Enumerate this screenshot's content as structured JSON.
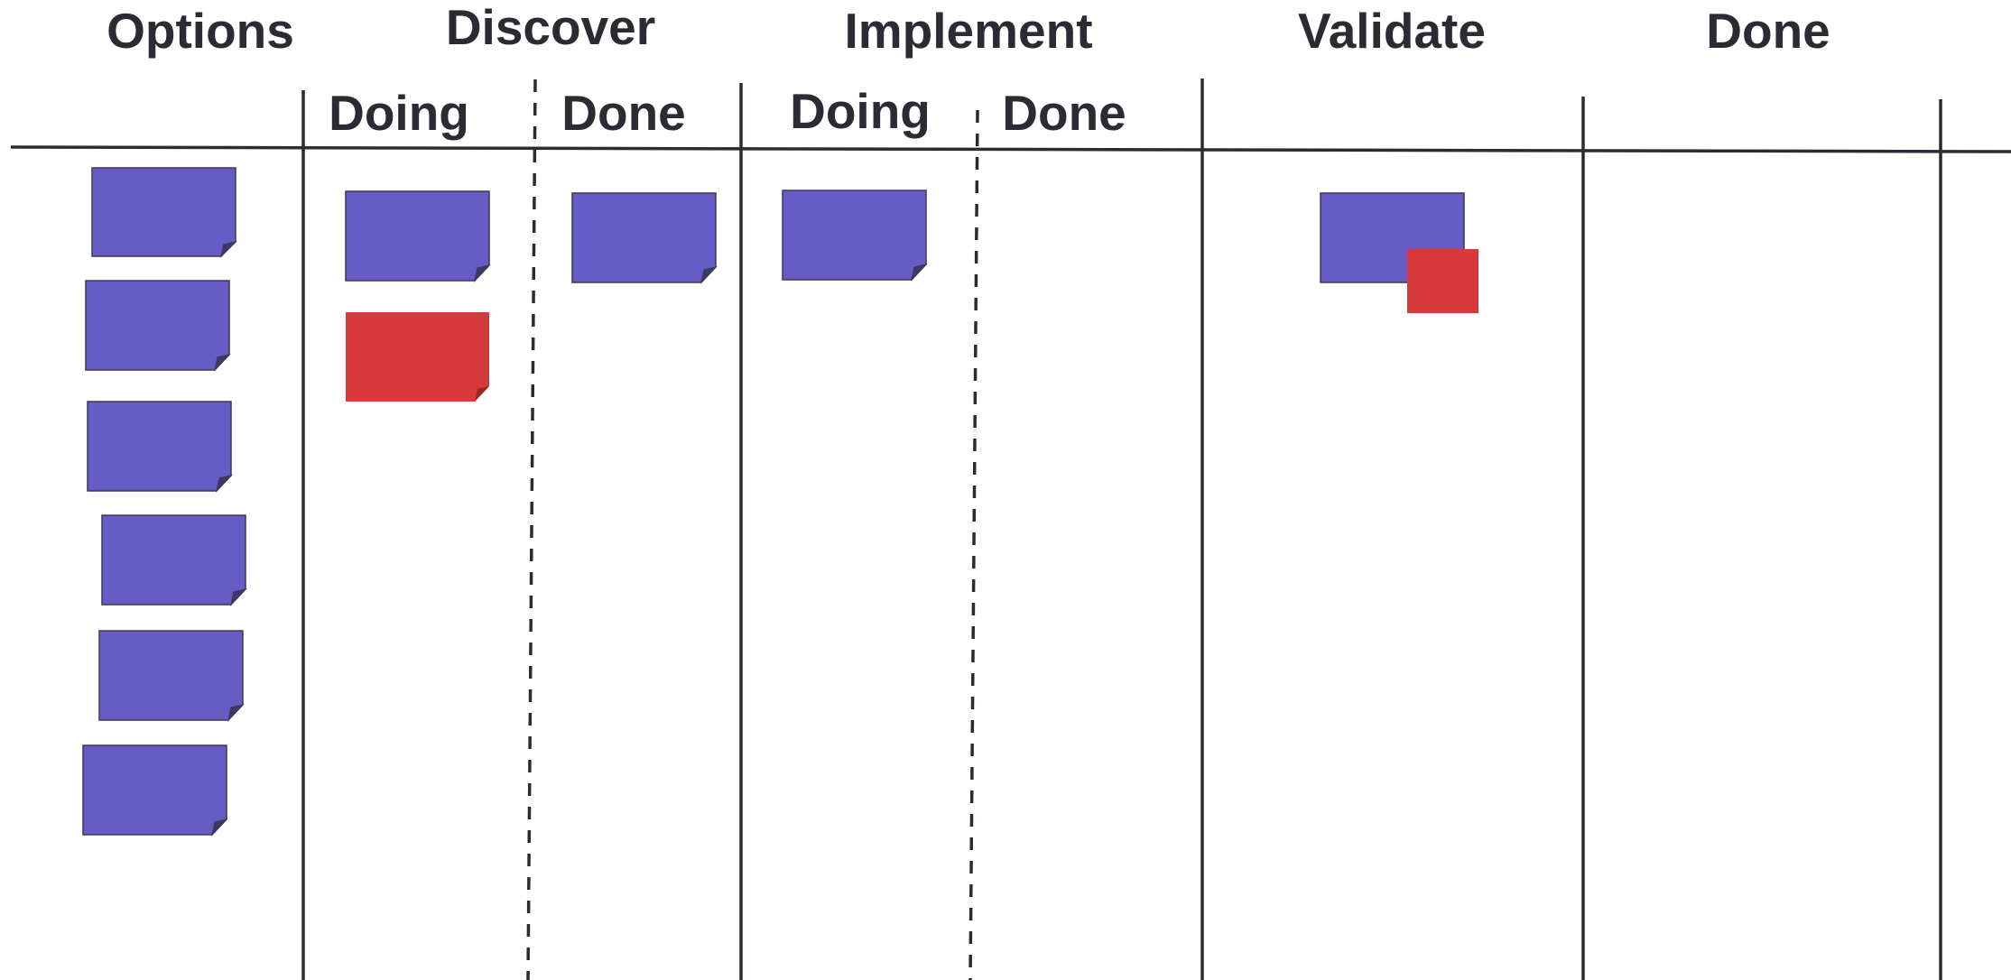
{
  "colors": {
    "ink": "#2b2b33",
    "blue_card": "#675cc6",
    "red_card": "#d63a3a",
    "background": "#ffffff"
  },
  "columns": {
    "options": {
      "label": "Options"
    },
    "discover": {
      "label": "Discover",
      "doing_label": "Doing",
      "done_label": "Done"
    },
    "implement": {
      "label": "Implement",
      "doing_label": "Doing",
      "done_label": "Done"
    },
    "validate": {
      "label": "Validate"
    },
    "done": {
      "label": "Done"
    }
  },
  "cards": {
    "options_count": 6,
    "discover_doing": [
      "blue",
      "red"
    ],
    "discover_done": [
      "blue"
    ],
    "implement_doing": [
      "blue"
    ],
    "implement_done": [],
    "validate": [
      "blue-with-red-blocker"
    ],
    "done": []
  }
}
